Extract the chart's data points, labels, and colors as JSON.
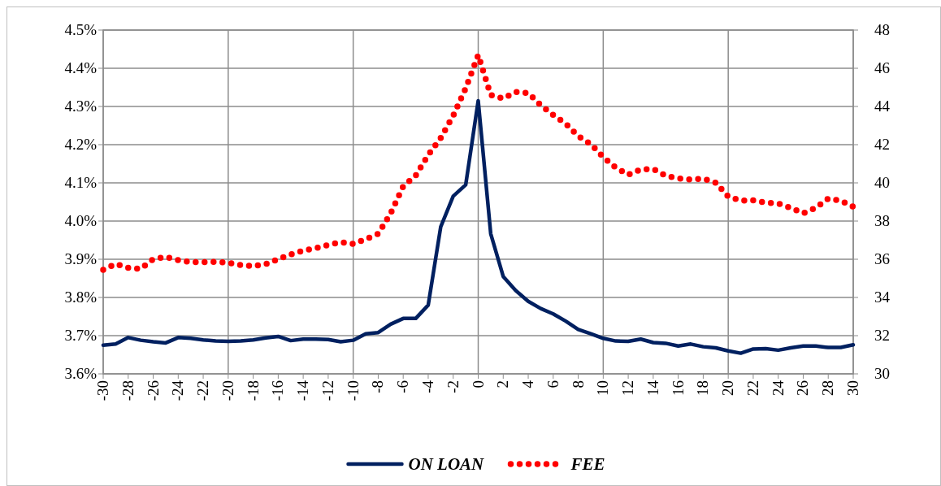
{
  "chart_data": {
    "type": "line",
    "x": [
      -30,
      -29,
      -28,
      -27,
      -26,
      -25,
      -24,
      -23,
      -22,
      -21,
      -20,
      -19,
      -18,
      -17,
      -16,
      -15,
      -14,
      -13,
      -12,
      -11,
      -10,
      -9,
      -8,
      -7,
      -6,
      -5,
      -4,
      -3,
      -2,
      -1,
      0,
      1,
      2,
      3,
      4,
      5,
      6,
      7,
      8,
      9,
      10,
      11,
      12,
      13,
      14,
      15,
      16,
      17,
      18,
      19,
      20,
      21,
      22,
      23,
      24,
      25,
      26,
      27,
      28,
      29,
      30
    ],
    "xlim": [
      -30,
      30
    ],
    "xticks": [
      -30,
      -28,
      -26,
      -24,
      -22,
      -20,
      -18,
      -16,
      -14,
      -12,
      -10,
      -8,
      -6,
      -4,
      -2,
      0,
      2,
      4,
      6,
      8,
      10,
      12,
      14,
      16,
      18,
      20,
      22,
      24,
      26,
      28,
      30
    ],
    "ylim": [
      3.6,
      4.5
    ],
    "yticks": [
      {
        "value": 3.6,
        "label": "3.6%"
      },
      {
        "value": 3.7,
        "label": "3.7%"
      },
      {
        "value": 3.8,
        "label": "3.8%"
      },
      {
        "value": 3.9,
        "label": "3.9%"
      },
      {
        "value": 4.0,
        "label": "4.0%"
      },
      {
        "value": 4.1,
        "label": "4.1%"
      },
      {
        "value": 4.2,
        "label": "4.2%"
      },
      {
        "value": 4.3,
        "label": "4.3%"
      },
      {
        "value": 4.4,
        "label": "4.4%"
      },
      {
        "value": 4.5,
        "label": "4.5%"
      }
    ],
    "y2lim": [
      30,
      48
    ],
    "y2ticks": [
      30,
      32,
      34,
      36,
      38,
      40,
      42,
      44,
      46,
      48
    ],
    "grid": true,
    "legend": "bottom",
    "series": [
      {
        "name": "ON LOAN",
        "color": "#002060",
        "line_style": "solid",
        "values": [
          3.675,
          3.678,
          3.695,
          3.688,
          3.684,
          3.681,
          3.695,
          3.693,
          3.689,
          3.686,
          3.685,
          3.686,
          3.689,
          3.694,
          3.698,
          3.687,
          3.691,
          3.691,
          3.69,
          3.684,
          3.688,
          3.705,
          3.708,
          3.73,
          3.745,
          3.745,
          3.78,
          3.985,
          4.065,
          4.095,
          4.315,
          3.967,
          3.855,
          3.818,
          3.79,
          3.771,
          3.757,
          3.738,
          3.716,
          3.705,
          3.693,
          3.686,
          3.685,
          3.691,
          3.682,
          3.68,
          3.673,
          3.678,
          3.671,
          3.668,
          3.66,
          3.654,
          3.665,
          3.666,
          3.662,
          3.668,
          3.673,
          3.673,
          3.669,
          3.669,
          3.676
        ]
      },
      {
        "name": "FEE",
        "color": "#ff0000",
        "line_style": "dotted",
        "axis": "y2",
        "values": [
          35.45,
          35.75,
          35.55,
          35.5,
          36.0,
          36.12,
          35.95,
          35.85,
          35.85,
          35.87,
          35.82,
          35.7,
          35.64,
          35.75,
          36.0,
          36.25,
          36.45,
          36.58,
          36.75,
          36.9,
          36.8,
          37.05,
          37.33,
          38.41,
          39.82,
          40.38,
          41.46,
          42.35,
          43.52,
          44.96,
          46.69,
          44.6,
          44.42,
          44.76,
          44.7,
          44.07,
          43.55,
          43.1,
          42.45,
          42.03,
          41.35,
          40.8,
          40.42,
          40.7,
          40.73,
          40.37,
          40.23,
          40.18,
          40.22,
          40.01,
          39.28,
          39.07,
          39.08,
          38.96,
          38.92,
          38.69,
          38.41,
          38.69,
          39.18,
          39.07,
          38.75
        ]
      }
    ]
  }
}
